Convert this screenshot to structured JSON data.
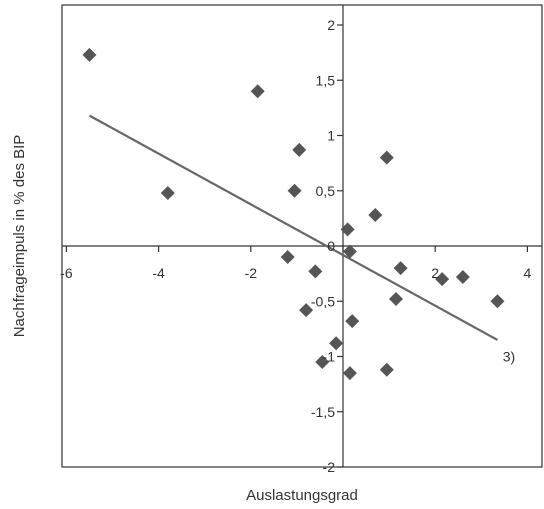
{
  "chart_data": {
    "type": "scatter",
    "xlabel": "Auslastungsgrad",
    "ylabel": "Nachfrageimpuls in % des BIP",
    "xlim": [
      -6,
      4.5
    ],
    "ylim": [
      -2,
      2.2
    ],
    "x_ticks": [
      -6,
      -4,
      -2,
      0,
      2,
      4
    ],
    "x_tick_labels": [
      "-6",
      "-4",
      "-2",
      "0",
      "2",
      "4"
    ],
    "y_ticks": [
      2,
      1.5,
      1,
      0.5,
      -0.5,
      -1,
      -1.5,
      -2
    ],
    "y_tick_labels": [
      "2",
      "1,5",
      "1",
      "0,5",
      "-0,5",
      "-1",
      "-1,5",
      "-2"
    ],
    "origin_label": "0",
    "grid": false,
    "marker": "diamond",
    "marker_color": "#555555",
    "line_color": "#666666",
    "points": [
      {
        "x": -5.5,
        "y": 1.73
      },
      {
        "x": -3.8,
        "y": 0.48
      },
      {
        "x": -1.85,
        "y": 1.4
      },
      {
        "x": -0.95,
        "y": 0.87
      },
      {
        "x": -1.05,
        "y": 0.5
      },
      {
        "x": -1.2,
        "y": -0.1
      },
      {
        "x": -0.8,
        "y": -0.58
      },
      {
        "x": -0.6,
        "y": -0.23
      },
      {
        "x": -0.45,
        "y": -1.05
      },
      {
        "x": -0.15,
        "y": -0.88
      },
      {
        "x": 0.1,
        "y": 0.15
      },
      {
        "x": 0.15,
        "y": -0.05
      },
      {
        "x": 0.15,
        "y": -1.15
      },
      {
        "x": 0.2,
        "y": -0.68
      },
      {
        "x": 0.7,
        "y": 0.28
      },
      {
        "x": 0.95,
        "y": 0.8
      },
      {
        "x": 0.95,
        "y": -1.12
      },
      {
        "x": 1.15,
        "y": -0.48
      },
      {
        "x": 1.25,
        "y": -0.2
      },
      {
        "x": 2.15,
        "y": -0.3
      },
      {
        "x": 2.6,
        "y": -0.28
      },
      {
        "x": 3.35,
        "y": -0.5
      }
    ],
    "trend_line": {
      "x": [
        -5.5,
        3.35
      ],
      "y": [
        1.18,
        -0.85
      ]
    },
    "annotation": {
      "text": "3)",
      "x": 3.6,
      "y": -1.0
    }
  }
}
